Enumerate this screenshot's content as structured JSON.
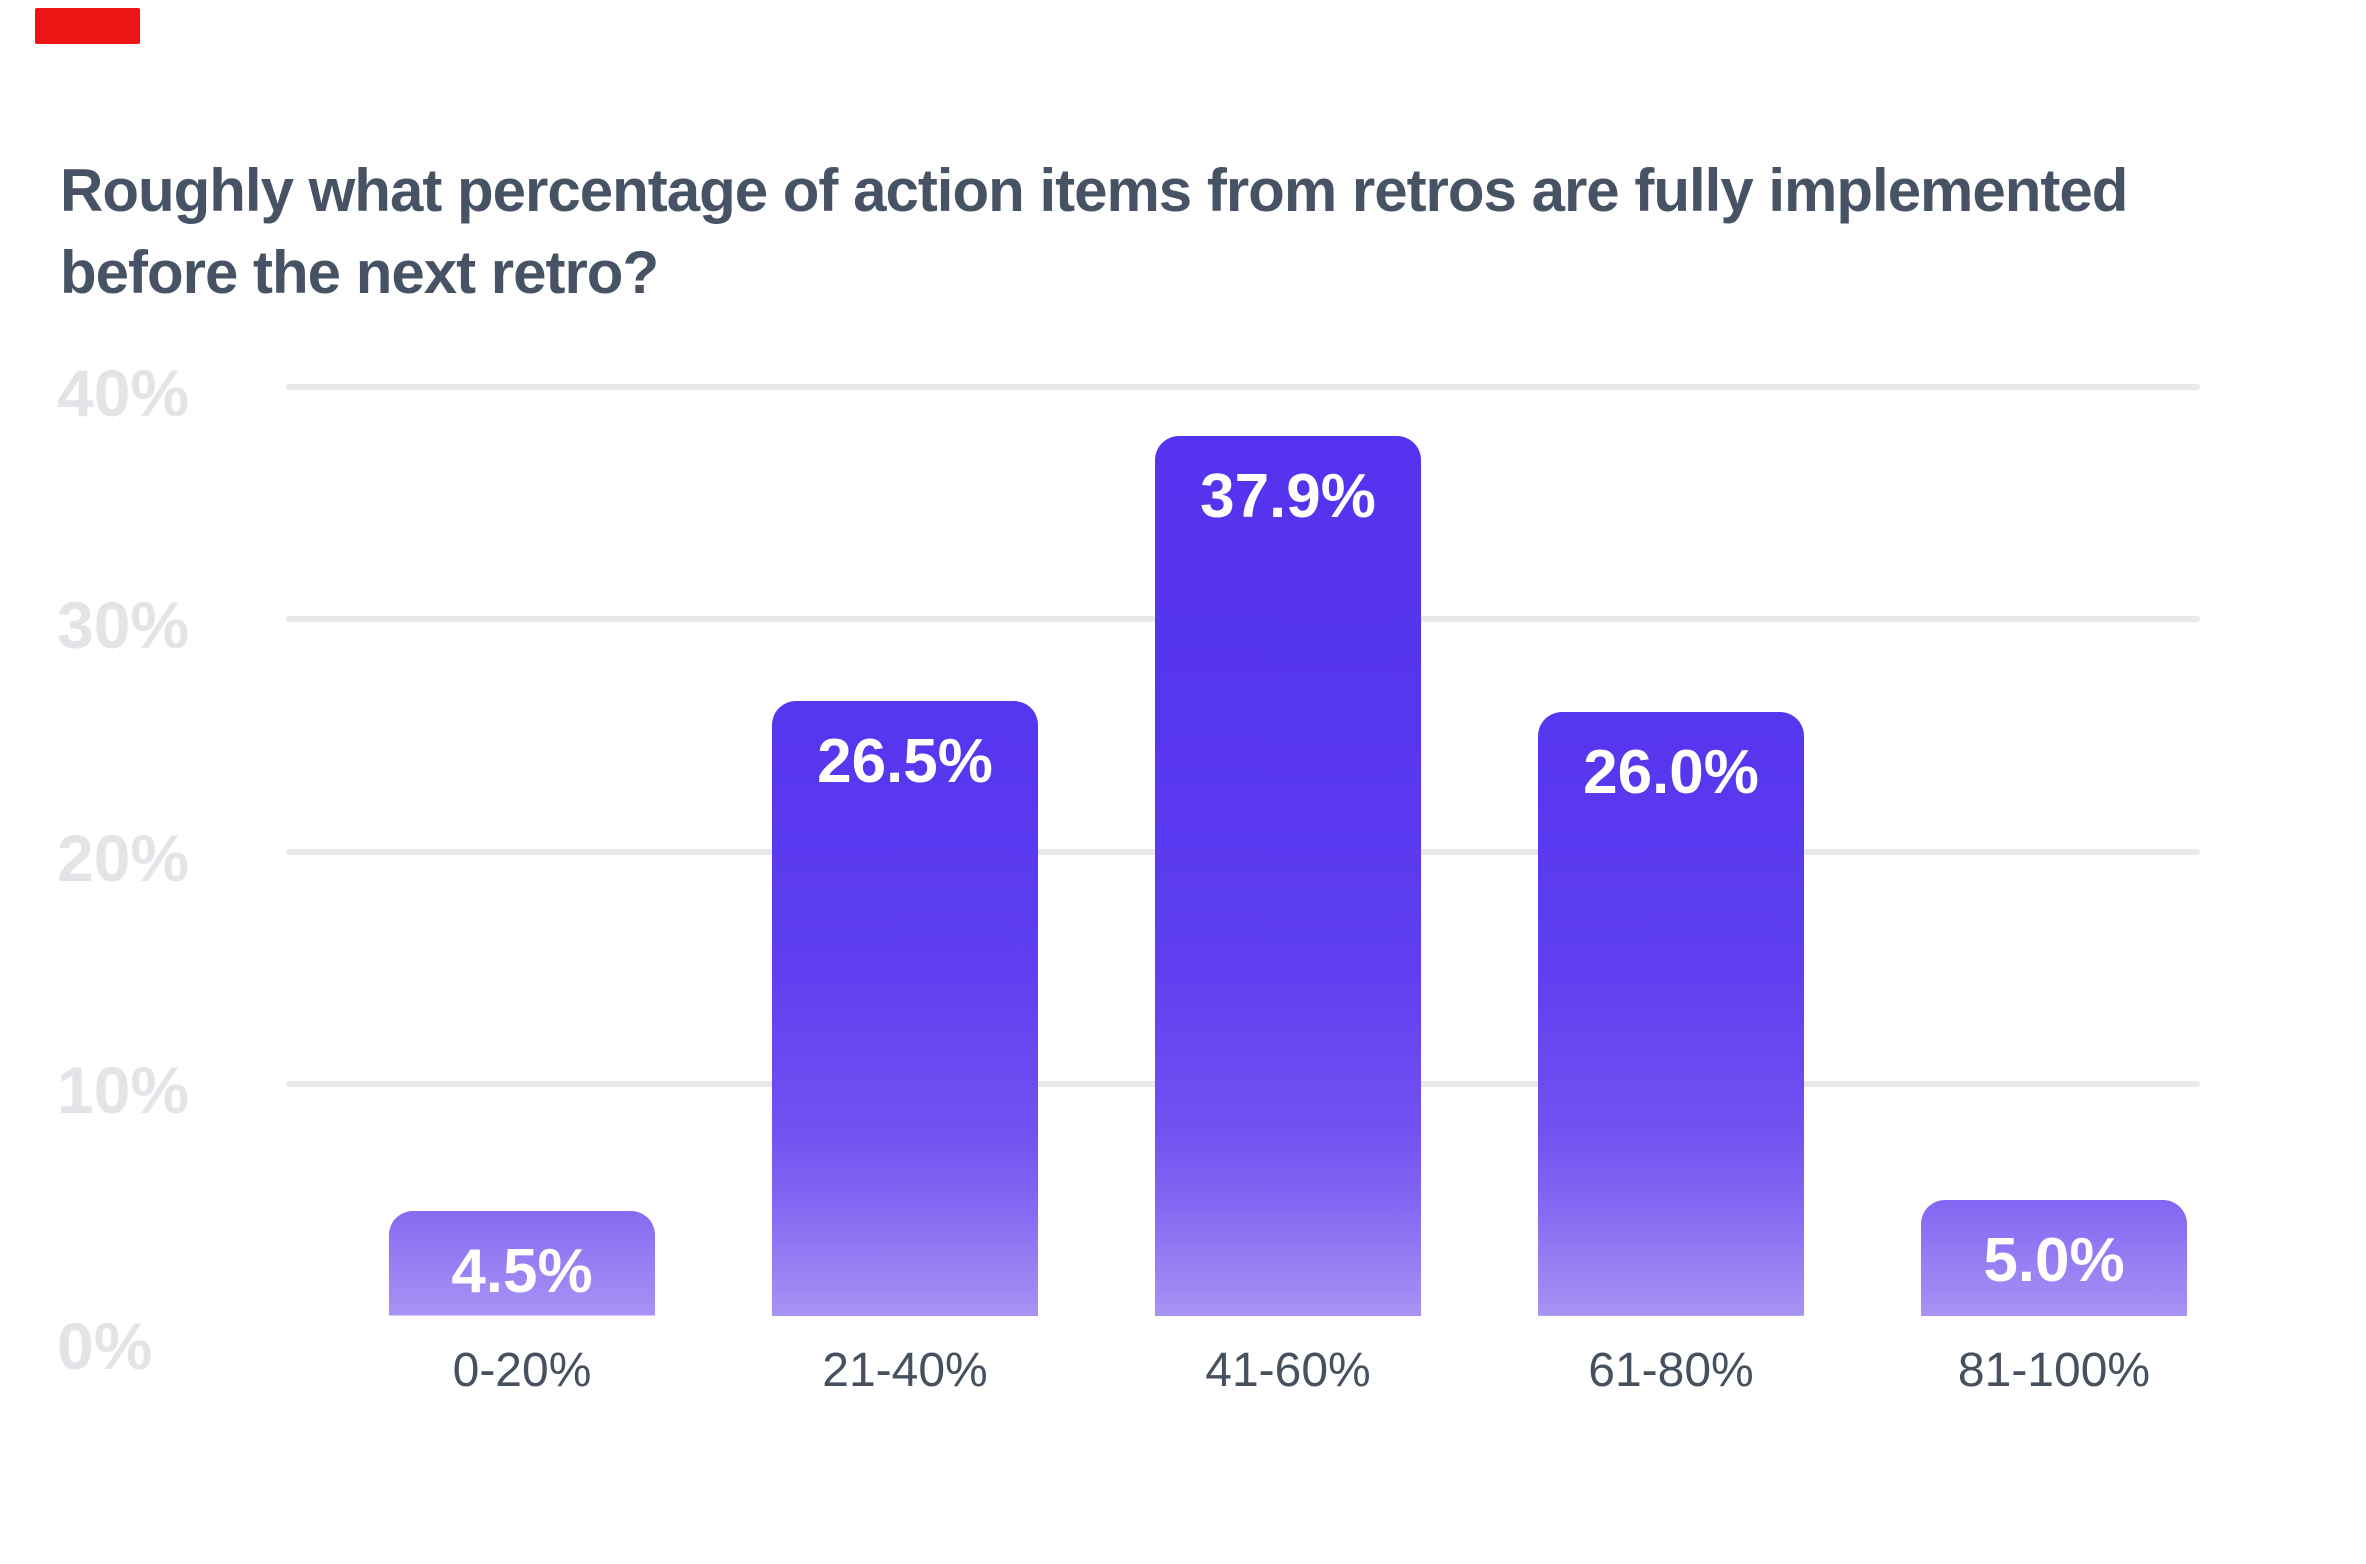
{
  "marker": {
    "color": "#ec1414"
  },
  "title_lines": [
    "Roughly what percentage of action items from retros are fully implemented",
    "before the next retro?"
  ],
  "chart_data": {
    "type": "bar",
    "title": "Roughly what percentage of action items from retros are fully implemented before the next retro?",
    "categories": [
      "0-20%",
      "21-40%",
      "41-60%",
      "61-80%",
      "81-100%"
    ],
    "values": [
      4.5,
      26.5,
      37.9,
      26.0,
      5.0
    ],
    "value_labels": [
      "4.5%",
      "26.5%",
      "37.9%",
      "26.0%",
      "5.0%"
    ],
    "y_ticks": [
      "40%",
      "30%",
      "20%",
      "10%",
      "0%"
    ],
    "y_tick_values": [
      40,
      30,
      20,
      10,
      0
    ],
    "ylim": [
      0,
      40
    ],
    "xlabel": "",
    "ylabel": "",
    "grid": "horizontal-only",
    "legend": "none",
    "colors": {
      "background": "#ffffff",
      "title": "#475365",
      "gridline": "#e9e9ec",
      "y_tick": "#e3e4e7",
      "x_tick": "#46505f",
      "value_label": "#ffffff",
      "bar_gradient_stops": [
        [
          "0%",
          "#5532ee"
        ],
        [
          "37%",
          "#5736ef"
        ],
        [
          "62%",
          "#5e3ef0"
        ],
        [
          "80%",
          "#7152f1"
        ],
        [
          "88%",
          "#8467f2"
        ],
        [
          "100%",
          "#a893f4"
        ]
      ]
    }
  }
}
